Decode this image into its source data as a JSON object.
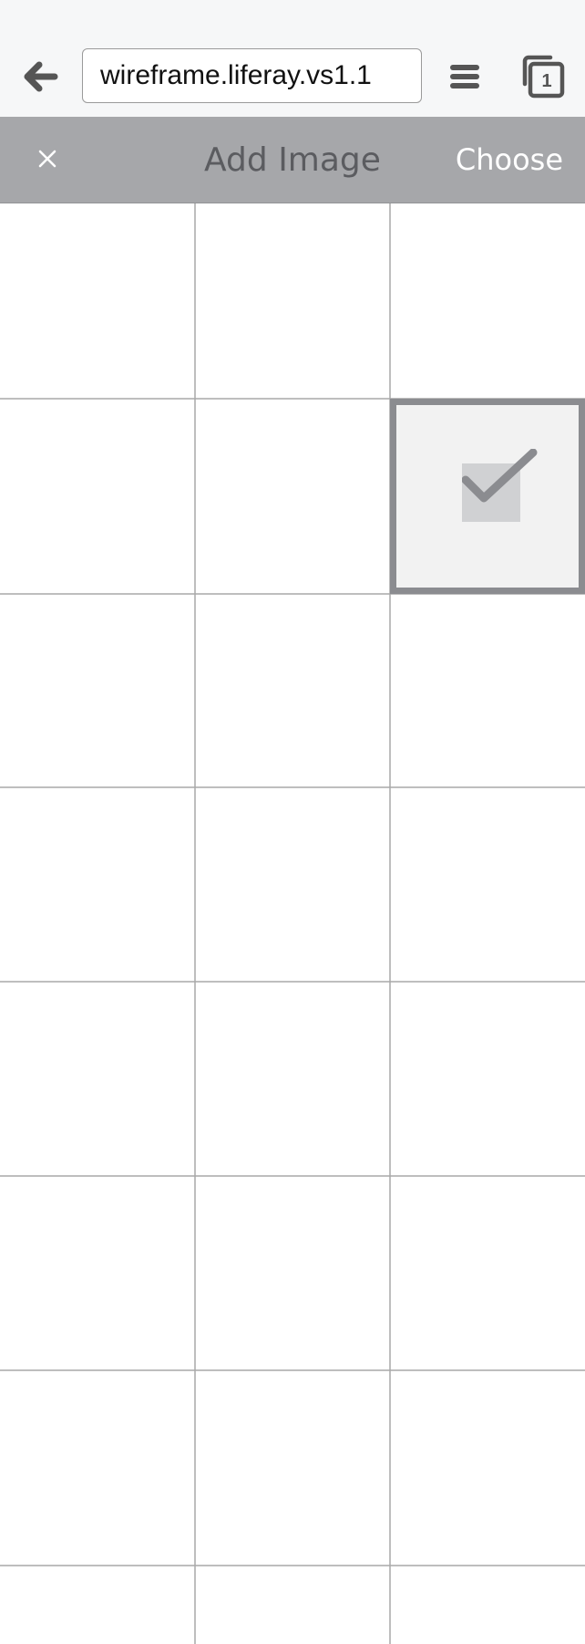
{
  "browser": {
    "back_icon": "arrow-left-icon",
    "url": "wireframe.liferay.vs1.1",
    "menu_icon": "hamburger-menu-icon",
    "tabs_icon": "tabs-icon",
    "tab_count": "1"
  },
  "header": {
    "close_icon": "close-icon",
    "close_label": "×",
    "title": "Add Image",
    "choose_label": "Choose"
  },
  "gallery": {
    "columns": 3,
    "rows_visible": 8,
    "selected_tile": {
      "row": 2,
      "column": 3
    },
    "selected_icon": "checkmark-icon"
  },
  "colors": {
    "header_bg": "#a6a7aa",
    "title_text": "#5b5c60",
    "choose_text": "#ffffff",
    "grid_lines": "#a9a9a9",
    "selection_border": "#8b8c90"
  }
}
